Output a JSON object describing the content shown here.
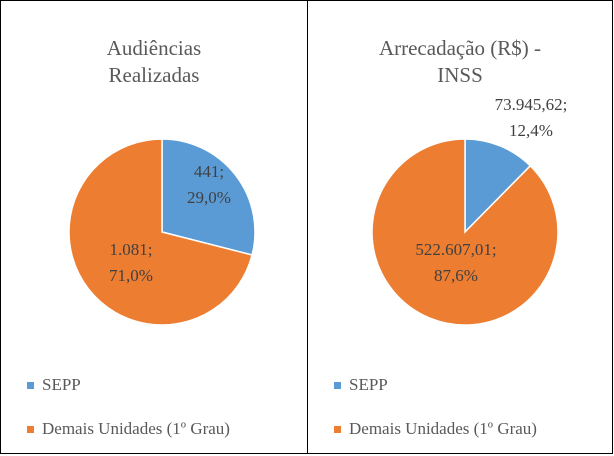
{
  "chart_data": [
    {
      "type": "pie",
      "title": "Audiências Realizadas",
      "categories": [
        "SEPP",
        "Demais Unidades (1º Grau)"
      ],
      "values": [
        441,
        1081
      ],
      "value_labels": [
        [
          "441;",
          "29,0%"
        ],
        [
          "1.081;",
          "71,0%"
        ]
      ],
      "colors": [
        "#5b9bd5",
        "#ed7d31"
      ]
    },
    {
      "type": "pie",
      "title": "Arrecadação (R$) - INSS",
      "categories": [
        "SEPP",
        "Demais Unidades (1º Grau)"
      ],
      "values": [
        73945.62,
        522607.01
      ],
      "value_labels": [
        [
          "73.945,62;",
          "12,4%"
        ],
        [
          "522.607,01;",
          "87,6%"
        ]
      ],
      "colors": [
        "#5b9bd5",
        "#ed7d31"
      ]
    }
  ]
}
